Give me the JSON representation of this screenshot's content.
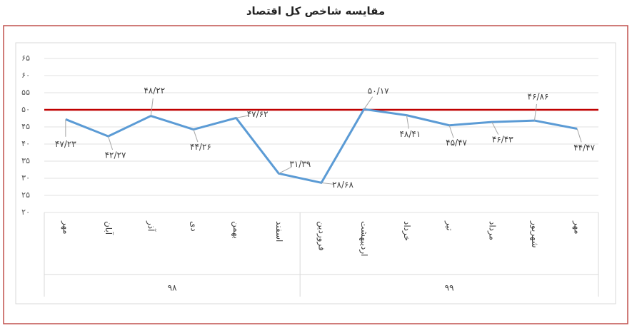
{
  "chart_data": {
    "type": "line",
    "title": "مقایسه شاخص کل اقتصاد",
    "categories": [
      "مهر",
      "آبان",
      "آذر",
      "دی",
      "بهمن",
      "اسفند",
      "فروردین",
      "اردیبهشت",
      "خرداد",
      "تیر",
      "مرداد",
      "شهریور",
      "مهر"
    ],
    "groups": [
      {
        "label": "۹۸",
        "count": 6
      },
      {
        "label": "۹۹",
        "count": 7
      }
    ],
    "series": [
      {
        "color": "#5b9bd5",
        "values": [
          47.23,
          42.27,
          48.22,
          44.26,
          47.62,
          31.39,
          28.68,
          50.17,
          48.41,
          45.47,
          46.43,
          46.86,
          44.47
        ],
        "value_labels": [
          "۴۷/۲۳",
          "۴۲/۲۷",
          "۴۸/۲۲",
          "۴۴/۲۶",
          "۴۷/۶۲",
          "۳۱/۳۹",
          "۲۸/۶۸",
          "۵۰/۱۷",
          "۴۸/۴۱",
          "۴۵/۴۷",
          "۴۶/۴۳",
          "۴۶/۸۶",
          "۴۴/۴۷"
        ]
      }
    ],
    "reference_line": {
      "value": 50,
      "color": "#c00000"
    },
    "ylim": [
      20,
      65
    ],
    "yticks": [
      {
        "value": 20,
        "label": "۲۰"
      },
      {
        "value": 25,
        "label": "۲۵"
      },
      {
        "value": 30,
        "label": "۳۰"
      },
      {
        "value": 35,
        "label": "۳۵"
      },
      {
        "value": 40,
        "label": "۴۰"
      },
      {
        "value": 45,
        "label": "۴۵"
      },
      {
        "value": 50,
        "label": "۵۰"
      },
      {
        "value": 55,
        "label": "۵۵"
      },
      {
        "value": 60,
        "label": "۶۰"
      },
      {
        "value": 65,
        "label": "۶۵"
      }
    ],
    "grid": true
  }
}
